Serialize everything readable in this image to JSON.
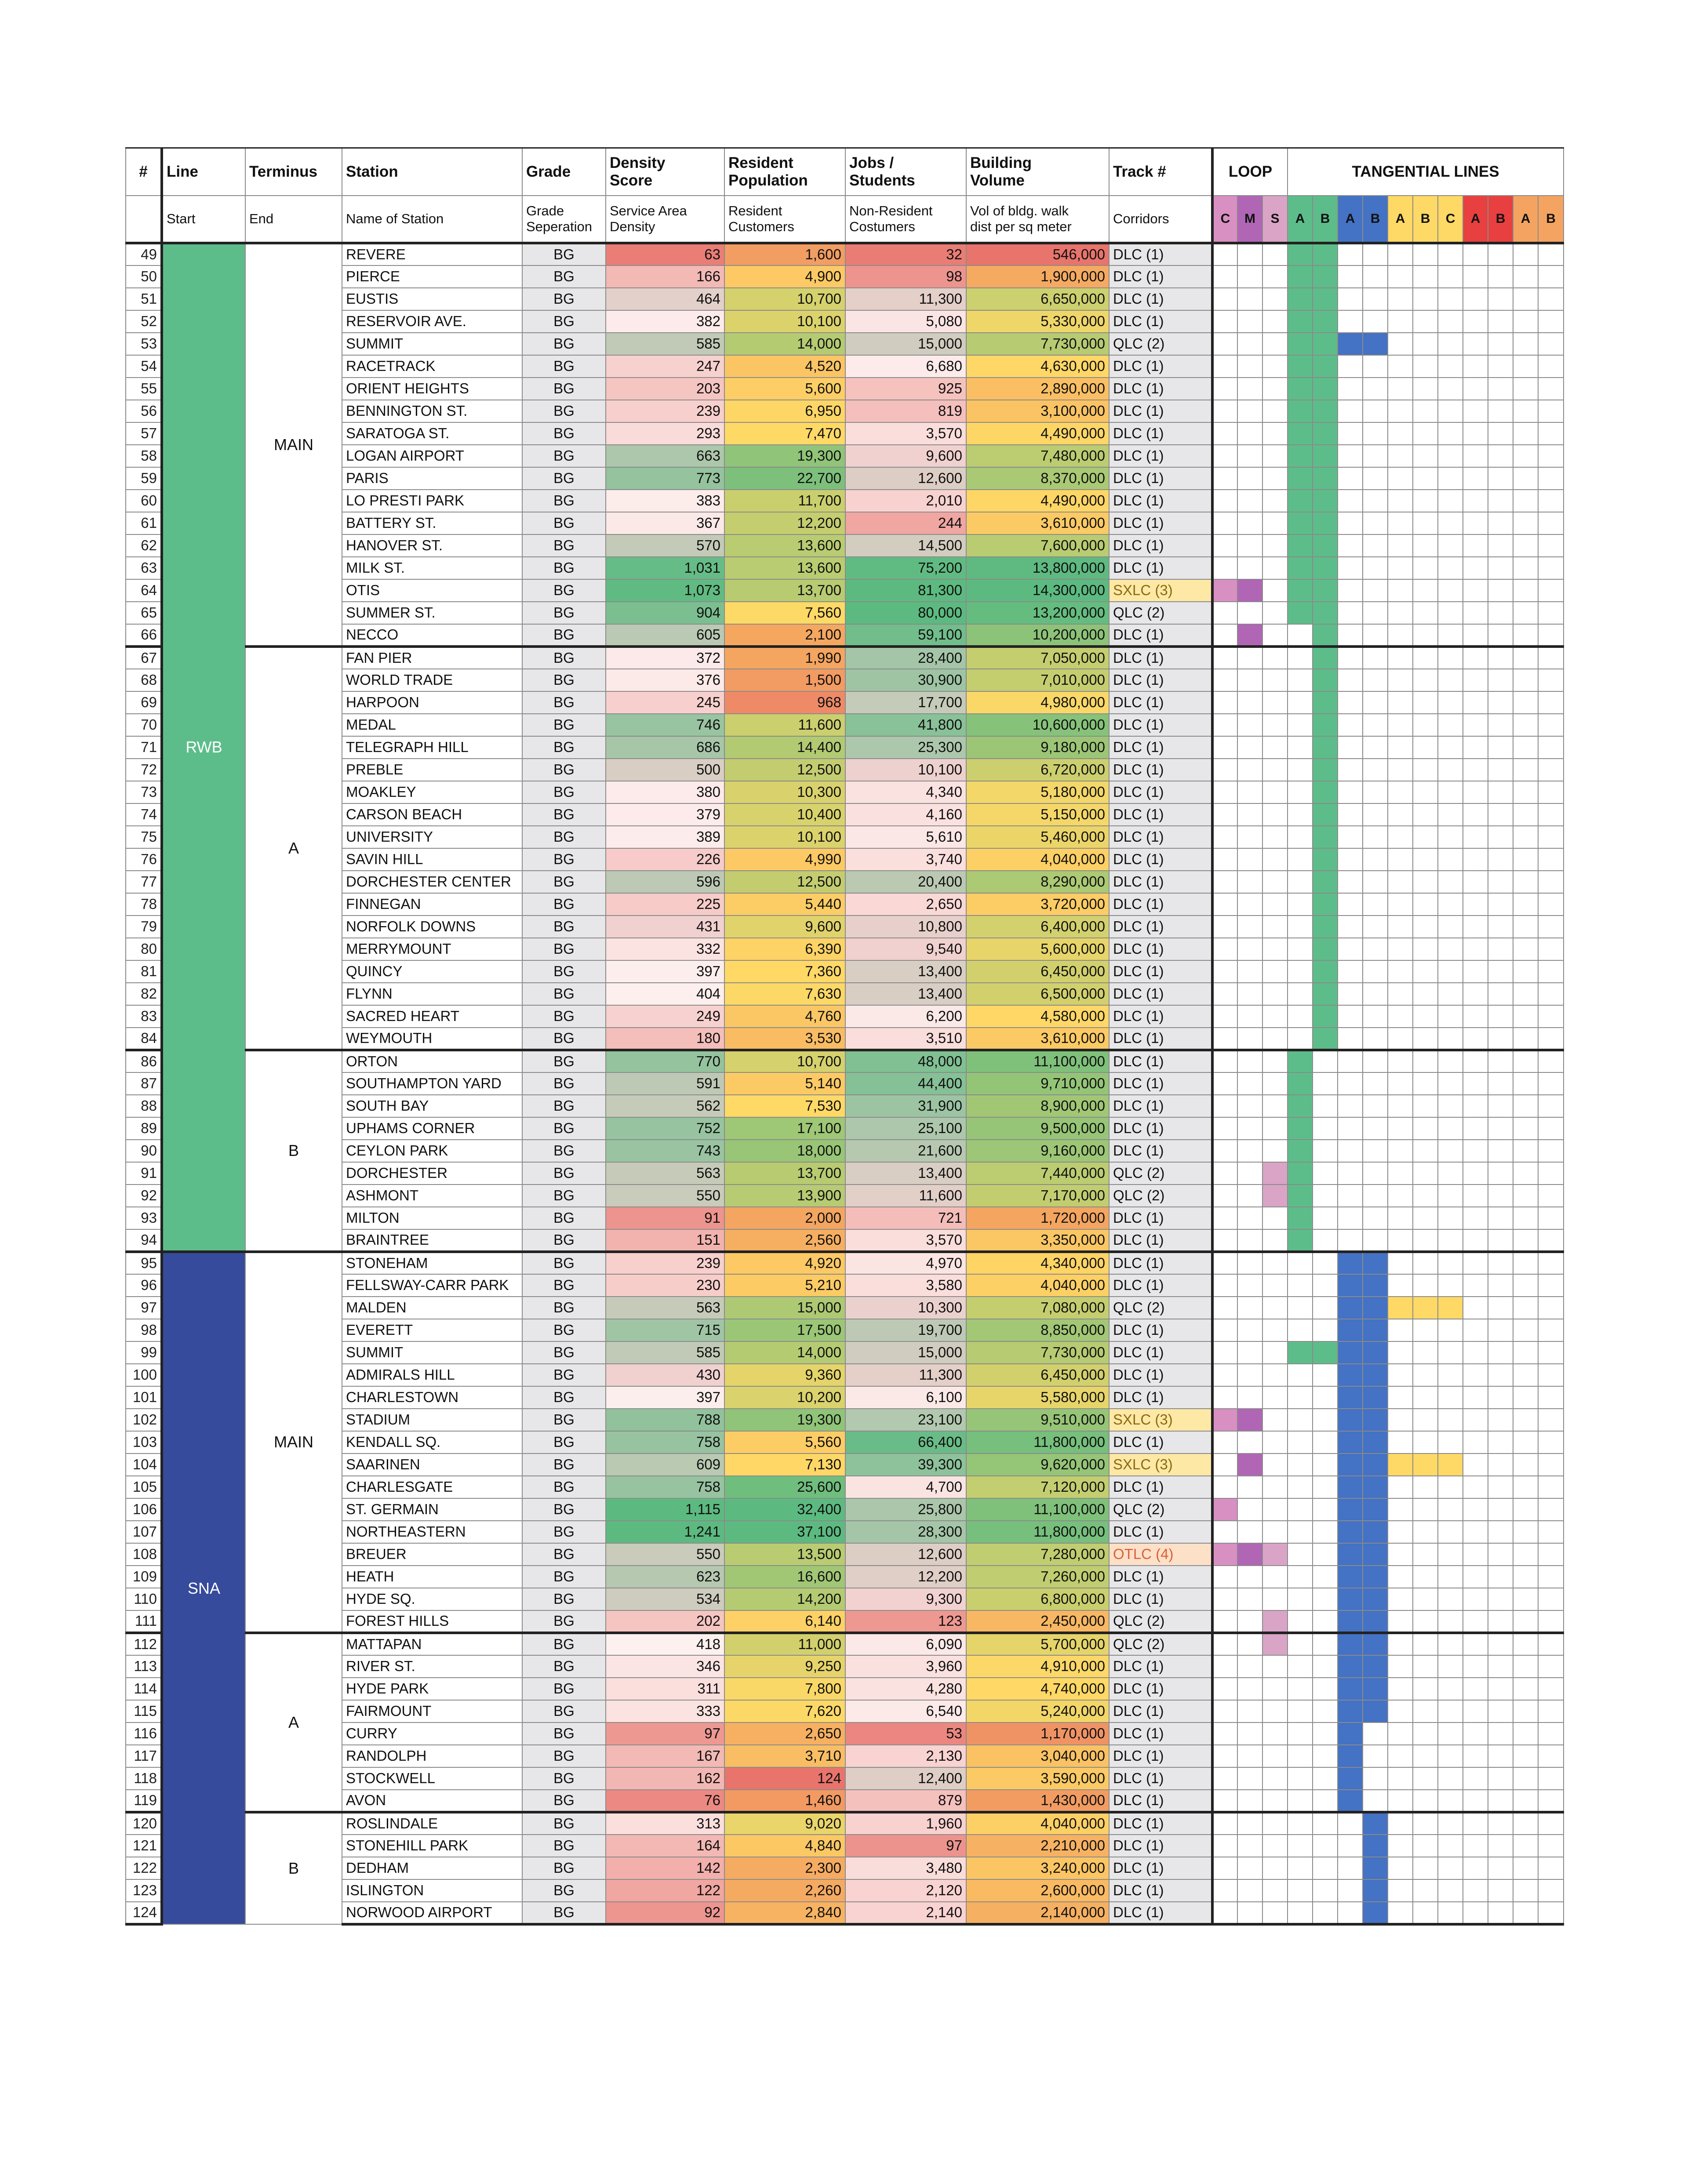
{
  "headers": {
    "num": "#",
    "line": "Line",
    "terminus": "Terminus",
    "station": "Station",
    "grade": "Grade",
    "density": "Density\nScore",
    "resident": "Resident\nPopulation",
    "jobs": "Jobs /\nStudents",
    "building": "Building\nVolume",
    "track": "Track #",
    "loop": "LOOP",
    "tangential": "TANGENTIAL LINES"
  },
  "subheaders": {
    "line": "Start",
    "terminus": "End",
    "station": "Name of Station",
    "grade": "Grade\nSeperation",
    "density": "Service Area\nDensity",
    "resident": "Resident\nCustomers",
    "jobs": "Non-Resident\nCostumers",
    "building": "Vol of bldg. walk\ndist per sq meter",
    "track": "Corridors"
  },
  "corridor_tags": [
    {
      "label": "C",
      "color": "#d88fc2"
    },
    {
      "label": "M",
      "color": "#b066b5"
    },
    {
      "label": "S",
      "color": "#d9a4c6"
    },
    {
      "label": "A",
      "color": "#5dbd8a"
    },
    {
      "label": "B",
      "color": "#5dbd8a"
    },
    {
      "label": "A",
      "color": "#4472c4"
    },
    {
      "label": "B",
      "color": "#4472c4"
    },
    {
      "label": "A",
      "color": "#ffd966"
    },
    {
      "label": "B",
      "color": "#ffd966"
    },
    {
      "label": "C",
      "color": "#ffd966"
    },
    {
      "label": "A",
      "color": "#e84040"
    },
    {
      "label": "B",
      "color": "#e84040"
    },
    {
      "label": "A",
      "color": "#f4a460"
    },
    {
      "label": "B",
      "color": "#f4a460"
    }
  ],
  "lines": [
    {
      "name": "RWB",
      "color": "#5dbd8a"
    },
    {
      "name": "SNA",
      "color": "#364b9b"
    }
  ],
  "termini": [
    "MAIN",
    "A",
    "B",
    "MAIN",
    "A",
    "B"
  ],
  "track_colors": {
    "DLC (1)": "#e7e7e9",
    "QLC (2)": "#e7e7e9",
    "SXLC (3)": "#fde8a6",
    "OTLC (4)": "#fde0c8"
  },
  "rows": [
    {
      "n": "49",
      "s": "REVERE",
      "g": "BG",
      "d": "63",
      "r": "1,600",
      "j": "32",
      "b": "546,000",
      "t": "DLC (1)"
    },
    {
      "n": "50",
      "s": "PIERCE",
      "g": "BG",
      "d": "166",
      "r": "4,900",
      "j": "98",
      "b": "1,900,000",
      "t": "DLC (1)"
    },
    {
      "n": "51",
      "s": "EUSTIS",
      "g": "BG",
      "d": "464",
      "r": "10,700",
      "j": "11,300",
      "b": "6,650,000",
      "t": "DLC (1)"
    },
    {
      "n": "52",
      "s": "RESERVOIR AVE.",
      "g": "BG",
      "d": "382",
      "r": "10,100",
      "j": "5,080",
      "b": "5,330,000",
      "t": "DLC (1)"
    },
    {
      "n": "53",
      "s": "SUMMIT",
      "g": "BG",
      "d": "585",
      "r": "14,000",
      "j": "15,000",
      "b": "7,730,000",
      "t": "QLC (2)"
    },
    {
      "n": "54",
      "s": "RACETRACK",
      "g": "BG",
      "d": "247",
      "r": "4,520",
      "j": "6,680",
      "b": "4,630,000",
      "t": "DLC (1)"
    },
    {
      "n": "55",
      "s": "ORIENT HEIGHTS",
      "g": "BG",
      "d": "203",
      "r": "5,600",
      "j": "925",
      "b": "2,890,000",
      "t": "DLC (1)"
    },
    {
      "n": "56",
      "s": "BENNINGTON ST.",
      "g": "BG",
      "d": "239",
      "r": "6,950",
      "j": "819",
      "b": "3,100,000",
      "t": "DLC (1)"
    },
    {
      "n": "57",
      "s": "SARATOGA ST.",
      "g": "BG",
      "d": "293",
      "r": "7,470",
      "j": "3,570",
      "b": "4,490,000",
      "t": "DLC (1)"
    },
    {
      "n": "58",
      "s": "LOGAN AIRPORT",
      "g": "BG",
      "d": "663",
      "r": "19,300",
      "j": "9,600",
      "b": "7,480,000",
      "t": "DLC (1)"
    },
    {
      "n": "59",
      "s": "PARIS",
      "g": "BG",
      "d": "773",
      "r": "22,700",
      "j": "12,600",
      "b": "8,370,000",
      "t": "DLC (1)"
    },
    {
      "n": "60",
      "s": "LO PRESTI PARK",
      "g": "BG",
      "d": "383",
      "r": "11,700",
      "j": "2,010",
      "b": "4,490,000",
      "t": "DLC (1)"
    },
    {
      "n": "61",
      "s": "BATTERY ST.",
      "g": "BG",
      "d": "367",
      "r": "12,200",
      "j": "244",
      "b": "3,610,000",
      "t": "DLC (1)"
    },
    {
      "n": "62",
      "s": "HANOVER ST.",
      "g": "BG",
      "d": "570",
      "r": "13,600",
      "j": "14,500",
      "b": "7,600,000",
      "t": "DLC (1)"
    },
    {
      "n": "63",
      "s": "MILK ST.",
      "g": "BG",
      "d": "1,031",
      "r": "13,600",
      "j": "75,200",
      "b": "13,800,000",
      "t": "DLC (1)"
    },
    {
      "n": "64",
      "s": "OTIS",
      "g": "BG",
      "d": "1,073",
      "r": "13,700",
      "j": "81,300",
      "b": "14,300,000",
      "t": "SXLC (3)"
    },
    {
      "n": "65",
      "s": "SUMMER ST.",
      "g": "BG",
      "d": "904",
      "r": "7,560",
      "j": "80,000",
      "b": "13,200,000",
      "t": "QLC (2)"
    },
    {
      "n": "66",
      "s": "NECCO",
      "g": "BG",
      "d": "605",
      "r": "2,100",
      "j": "59,100",
      "b": "10,200,000",
      "t": "DLC (1)"
    },
    {
      "n": "67",
      "s": "FAN PIER",
      "g": "BG",
      "d": "372",
      "r": "1,990",
      "j": "28,400",
      "b": "7,050,000",
      "t": "DLC (1)"
    },
    {
      "n": "68",
      "s": "WORLD TRADE",
      "g": "BG",
      "d": "376",
      "r": "1,500",
      "j": "30,900",
      "b": "7,010,000",
      "t": "DLC (1)"
    },
    {
      "n": "69",
      "s": "HARPOON",
      "g": "BG",
      "d": "245",
      "r": "968",
      "j": "17,700",
      "b": "4,980,000",
      "t": "DLC (1)"
    },
    {
      "n": "70",
      "s": "MEDAL",
      "g": "BG",
      "d": "746",
      "r": "11,600",
      "j": "41,800",
      "b": "10,600,000",
      "t": "DLC (1)"
    },
    {
      "n": "71",
      "s": "TELEGRAPH HILL",
      "g": "BG",
      "d": "686",
      "r": "14,400",
      "j": "25,300",
      "b": "9,180,000",
      "t": "DLC (1)"
    },
    {
      "n": "72",
      "s": "PREBLE",
      "g": "BG",
      "d": "500",
      "r": "12,500",
      "j": "10,100",
      "b": "6,720,000",
      "t": "DLC (1)"
    },
    {
      "n": "73",
      "s": "MOAKLEY",
      "g": "BG",
      "d": "380",
      "r": "10,300",
      "j": "4,340",
      "b": "5,180,000",
      "t": "DLC (1)"
    },
    {
      "n": "74",
      "s": "CARSON BEACH",
      "g": "BG",
      "d": "379",
      "r": "10,400",
      "j": "4,160",
      "b": "5,150,000",
      "t": "DLC (1)"
    },
    {
      "n": "75",
      "s": "UNIVERSITY",
      "g": "BG",
      "d": "389",
      "r": "10,100",
      "j": "5,610",
      "b": "5,460,000",
      "t": "DLC (1)"
    },
    {
      "n": "76",
      "s": "SAVIN HILL",
      "g": "BG",
      "d": "226",
      "r": "4,990",
      "j": "3,740",
      "b": "4,040,000",
      "t": "DLC (1)"
    },
    {
      "n": "77",
      "s": "DORCHESTER CENTER",
      "g": "BG",
      "d": "596",
      "r": "12,500",
      "j": "20,400",
      "b": "8,290,000",
      "t": "DLC (1)"
    },
    {
      "n": "78",
      "s": "FINNEGAN",
      "g": "BG",
      "d": "225",
      "r": "5,440",
      "j": "2,650",
      "b": "3,720,000",
      "t": "DLC (1)"
    },
    {
      "n": "79",
      "s": "NORFOLK DOWNS",
      "g": "BG",
      "d": "431",
      "r": "9,600",
      "j": "10,800",
      "b": "6,400,000",
      "t": "DLC (1)"
    },
    {
      "n": "80",
      "s": "MERRYMOUNT",
      "g": "BG",
      "d": "332",
      "r": "6,390",
      "j": "9,540",
      "b": "5,600,000",
      "t": "DLC (1)"
    },
    {
      "n": "81",
      "s": "QUINCY",
      "g": "BG",
      "d": "397",
      "r": "7,360",
      "j": "13,400",
      "b": "6,450,000",
      "t": "DLC (1)"
    },
    {
      "n": "82",
      "s": "FLYNN",
      "g": "BG",
      "d": "404",
      "r": "7,630",
      "j": "13,400",
      "b": "6,500,000",
      "t": "DLC (1)"
    },
    {
      "n": "83",
      "s": "SACRED HEART",
      "g": "BG",
      "d": "249",
      "r": "4,760",
      "j": "6,200",
      "b": "4,580,000",
      "t": "DLC (1)"
    },
    {
      "n": "84",
      "s": "WEYMOUTH",
      "g": "BG",
      "d": "180",
      "r": "3,530",
      "j": "3,510",
      "b": "3,610,000",
      "t": "DLC (1)"
    },
    {
      "n": "86",
      "s": "ORTON",
      "g": "BG",
      "d": "770",
      "r": "10,700",
      "j": "48,000",
      "b": "11,100,000",
      "t": "DLC (1)"
    },
    {
      "n": "87",
      "s": "SOUTHAMPTON YARD",
      "g": "BG",
      "d": "591",
      "r": "5,140",
      "j": "44,400",
      "b": "9,710,000",
      "t": "DLC (1)"
    },
    {
      "n": "88",
      "s": "SOUTH BAY",
      "g": "BG",
      "d": "562",
      "r": "7,530",
      "j": "31,900",
      "b": "8,900,000",
      "t": "DLC (1)"
    },
    {
      "n": "89",
      "s": "UPHAMS CORNER",
      "g": "BG",
      "d": "752",
      "r": "17,100",
      "j": "25,100",
      "b": "9,500,000",
      "t": "DLC (1)"
    },
    {
      "n": "90",
      "s": "CEYLON PARK",
      "g": "BG",
      "d": "743",
      "r": "18,000",
      "j": "21,600",
      "b": "9,160,000",
      "t": "DLC (1)"
    },
    {
      "n": "91",
      "s": "DORCHESTER",
      "g": "BG",
      "d": "563",
      "r": "13,700",
      "j": "13,400",
      "b": "7,440,000",
      "t": "QLC (2)"
    },
    {
      "n": "92",
      "s": "ASHMONT",
      "g": "BG",
      "d": "550",
      "r": "13,900",
      "j": "11,600",
      "b": "7,170,000",
      "t": "QLC (2)"
    },
    {
      "n": "93",
      "s": "MILTON",
      "g": "BG",
      "d": "91",
      "r": "2,000",
      "j": "721",
      "b": "1,720,000",
      "t": "DLC (1)"
    },
    {
      "n": "94",
      "s": "BRAINTREE",
      "g": "BG",
      "d": "151",
      "r": "2,560",
      "j": "3,570",
      "b": "3,350,000",
      "t": "DLC (1)"
    },
    {
      "n": "95",
      "s": "STONEHAM",
      "g": "BG",
      "d": "239",
      "r": "4,920",
      "j": "4,970",
      "b": "4,340,000",
      "t": "DLC (1)"
    },
    {
      "n": "96",
      "s": "FELLSWAY-CARR PARK",
      "g": "BG",
      "d": "230",
      "r": "5,210",
      "j": "3,580",
      "b": "4,040,000",
      "t": "DLC (1)"
    },
    {
      "n": "97",
      "s": "MALDEN",
      "g": "BG",
      "d": "563",
      "r": "15,000",
      "j": "10,300",
      "b": "7,080,000",
      "t": "QLC (2)"
    },
    {
      "n": "98",
      "s": "EVERETT",
      "g": "BG",
      "d": "715",
      "r": "17,500",
      "j": "19,700",
      "b": "8,850,000",
      "t": "DLC (1)"
    },
    {
      "n": "99",
      "s": "SUMMIT",
      "g": "BG",
      "d": "585",
      "r": "14,000",
      "j": "15,000",
      "b": "7,730,000",
      "t": "DLC (1)"
    },
    {
      "n": "100",
      "s": "ADMIRALS HILL",
      "g": "BG",
      "d": "430",
      "r": "9,360",
      "j": "11,300",
      "b": "6,450,000",
      "t": "DLC (1)"
    },
    {
      "n": "101",
      "s": "CHARLESTOWN",
      "g": "BG",
      "d": "397",
      "r": "10,200",
      "j": "6,100",
      "b": "5,580,000",
      "t": "DLC (1)"
    },
    {
      "n": "102",
      "s": "STADIUM",
      "g": "BG",
      "d": "788",
      "r": "19,300",
      "j": "23,100",
      "b": "9,510,000",
      "t": "SXLC (3)"
    },
    {
      "n": "103",
      "s": "KENDALL SQ.",
      "g": "BG",
      "d": "758",
      "r": "5,560",
      "j": "66,400",
      "b": "11,800,000",
      "t": "DLC (1)"
    },
    {
      "n": "104",
      "s": "SAARINEN",
      "g": "BG",
      "d": "609",
      "r": "7,130",
      "j": "39,300",
      "b": "9,620,000",
      "t": "SXLC (3)"
    },
    {
      "n": "105",
      "s": "CHARLESGATE",
      "g": "BG",
      "d": "758",
      "r": "25,600",
      "j": "4,700",
      "b": "7,120,000",
      "t": "DLC (1)"
    },
    {
      "n": "106",
      "s": "ST. GERMAIN",
      "g": "BG",
      "d": "1,115",
      "r": "32,400",
      "j": "25,800",
      "b": "11,100,000",
      "t": "QLC (2)"
    },
    {
      "n": "107",
      "s": "NORTHEASTERN",
      "g": "BG",
      "d": "1,241",
      "r": "37,100",
      "j": "28,300",
      "b": "11,800,000",
      "t": "DLC (1)"
    },
    {
      "n": "108",
      "s": "BREUER",
      "g": "BG",
      "d": "550",
      "r": "13,500",
      "j": "12,600",
      "b": "7,280,000",
      "t": "OTLC (4)"
    },
    {
      "n": "109",
      "s": "HEATH",
      "g": "BG",
      "d": "623",
      "r": "16,600",
      "j": "12,200",
      "b": "7,260,000",
      "t": "DLC (1)"
    },
    {
      "n": "110",
      "s": "HYDE SQ.",
      "g": "BG",
      "d": "534",
      "r": "14,200",
      "j": "9,300",
      "b": "6,800,000",
      "t": "DLC (1)"
    },
    {
      "n": "111",
      "s": "FOREST HILLS",
      "g": "BG",
      "d": "202",
      "r": "6,140",
      "j": "123",
      "b": "2,450,000",
      "t": "QLC (2)"
    },
    {
      "n": "112",
      "s": "MATTAPAN",
      "g": "BG",
      "d": "418",
      "r": "11,000",
      "j": "6,090",
      "b": "5,700,000",
      "t": "QLC (2)"
    },
    {
      "n": "113",
      "s": "RIVER ST.",
      "g": "BG",
      "d": "346",
      "r": "9,250",
      "j": "3,960",
      "b": "4,910,000",
      "t": "DLC (1)"
    },
    {
      "n": "114",
      "s": "HYDE PARK",
      "g": "BG",
      "d": "311",
      "r": "7,800",
      "j": "4,280",
      "b": "4,740,000",
      "t": "DLC (1)"
    },
    {
      "n": "115",
      "s": "FAIRMOUNT",
      "g": "BG",
      "d": "333",
      "r": "7,620",
      "j": "6,540",
      "b": "5,240,000",
      "t": "DLC (1)"
    },
    {
      "n": "116",
      "s": "CURRY",
      "g": "BG",
      "d": "97",
      "r": "2,650",
      "j": "53",
      "b": "1,170,000",
      "t": "DLC (1)"
    },
    {
      "n": "117",
      "s": "RANDOLPH",
      "g": "BG",
      "d": "167",
      "r": "3,710",
      "j": "2,130",
      "b": "3,040,000",
      "t": "DLC (1)"
    },
    {
      "n": "118",
      "s": "STOCKWELL",
      "g": "BG",
      "d": "162",
      "r": "124",
      "j": "12,400",
      "b": "3,590,000",
      "t": "DLC (1)"
    },
    {
      "n": "119",
      "s": "AVON",
      "g": "BG",
      "d": "76",
      "r": "1,460",
      "j": "879",
      "b": "1,430,000",
      "t": "DLC (1)"
    },
    {
      "n": "120",
      "s": "ROSLINDALE",
      "g": "BG",
      "d": "313",
      "r": "9,020",
      "j": "1,960",
      "b": "4,040,000",
      "t": "DLC (1)"
    },
    {
      "n": "121",
      "s": "STONEHILL PARK",
      "g": "BG",
      "d": "164",
      "r": "4,840",
      "j": "97",
      "b": "2,210,000",
      "t": "DLC (1)"
    },
    {
      "n": "122",
      "s": "DEDHAM",
      "g": "BG",
      "d": "142",
      "r": "2,300",
      "j": "3,480",
      "b": "3,240,000",
      "t": "DLC (1)"
    },
    {
      "n": "123",
      "s": "ISLINGTON",
      "g": "BG",
      "d": "122",
      "r": "2,260",
      "j": "2,120",
      "b": "2,600,000",
      "t": "DLC (1)"
    },
    {
      "n": "124",
      "s": "NORWOOD AIRPORT",
      "g": "BG",
      "d": "92",
      "r": "2,840",
      "j": "2,140",
      "b": "2,140,000",
      "t": "DLC (1)"
    }
  ]
}
